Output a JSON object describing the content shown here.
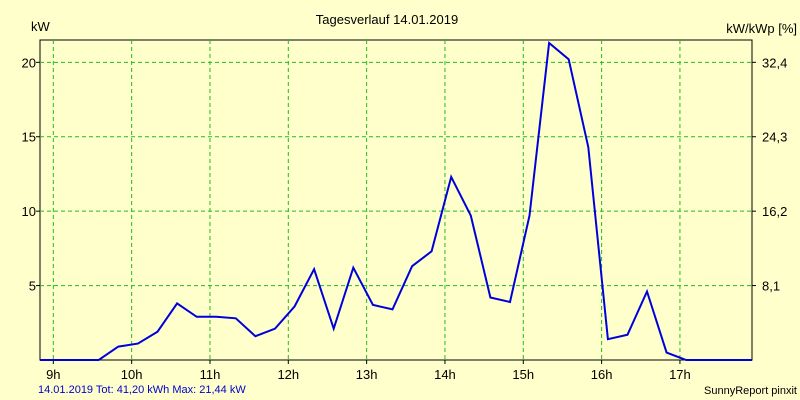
{
  "chart_data": {
    "type": "line",
    "title": "Tagesverlauf 14.01.2019",
    "ylabel_left": "kW",
    "ylabel_right": "kW/kWp [%]",
    "x_unit": "hour of day",
    "xlim": [
      8.83,
      17.92
    ],
    "ylim": [
      0,
      21.5
    ],
    "x_ticks": [
      {
        "value": 9,
        "label": "9h"
      },
      {
        "value": 10,
        "label": "10h"
      },
      {
        "value": 11,
        "label": "11h"
      },
      {
        "value": 12,
        "label": "12h"
      },
      {
        "value": 13,
        "label": "13h"
      },
      {
        "value": 14,
        "label": "14h"
      },
      {
        "value": 15,
        "label": "15h"
      },
      {
        "value": 16,
        "label": "16h"
      },
      {
        "value": 17,
        "label": "17h"
      }
    ],
    "y_ticks_left": [
      {
        "value": 5,
        "label": "5"
      },
      {
        "value": 10,
        "label": "10"
      },
      {
        "value": 15,
        "label": "15"
      },
      {
        "value": 20,
        "label": "20"
      }
    ],
    "y_ticks_right": [
      {
        "value": 5,
        "label": "8,1"
      },
      {
        "value": 10,
        "label": "16,2"
      },
      {
        "value": 15,
        "label": "24,3"
      },
      {
        "value": 20,
        "label": "32,4"
      }
    ],
    "grid": true,
    "series": [
      {
        "color": "#0000dd",
        "x": [
          8.83,
          9.25,
          9.58,
          9.83,
          10.08,
          10.33,
          10.58,
          10.83,
          11.08,
          11.33,
          11.58,
          11.83,
          12.08,
          12.33,
          12.58,
          12.83,
          13.08,
          13.33,
          13.58,
          13.83,
          14.08,
          14.33,
          14.58,
          14.83,
          15.08,
          15.33,
          15.58,
          15.83,
          16.08,
          16.33,
          16.58,
          16.83,
          17.08,
          17.33,
          17.58,
          17.92
        ],
        "values": [
          0,
          0,
          0,
          0.9,
          1.1,
          1.9,
          3.8,
          2.9,
          2.9,
          2.8,
          1.6,
          2.1,
          3.6,
          6.1,
          2.1,
          6.2,
          3.7,
          3.4,
          6.3,
          7.3,
          12.3,
          9.7,
          4.2,
          3.9,
          9.7,
          21.3,
          20.2,
          14.3,
          1.4,
          1.7,
          4.6,
          0.5,
          0,
          0,
          0,
          0
        ]
      }
    ]
  },
  "footer": {
    "left_text": "14.01.2019 Tot: 41,20 kWh Max: 21,44 kW",
    "right_text": "SunnyReport pinxit"
  },
  "colors": {
    "background": "#ffffcc",
    "grid": "#22bb22",
    "line": "#0000dd",
    "footer_left": "#0000cc"
  }
}
